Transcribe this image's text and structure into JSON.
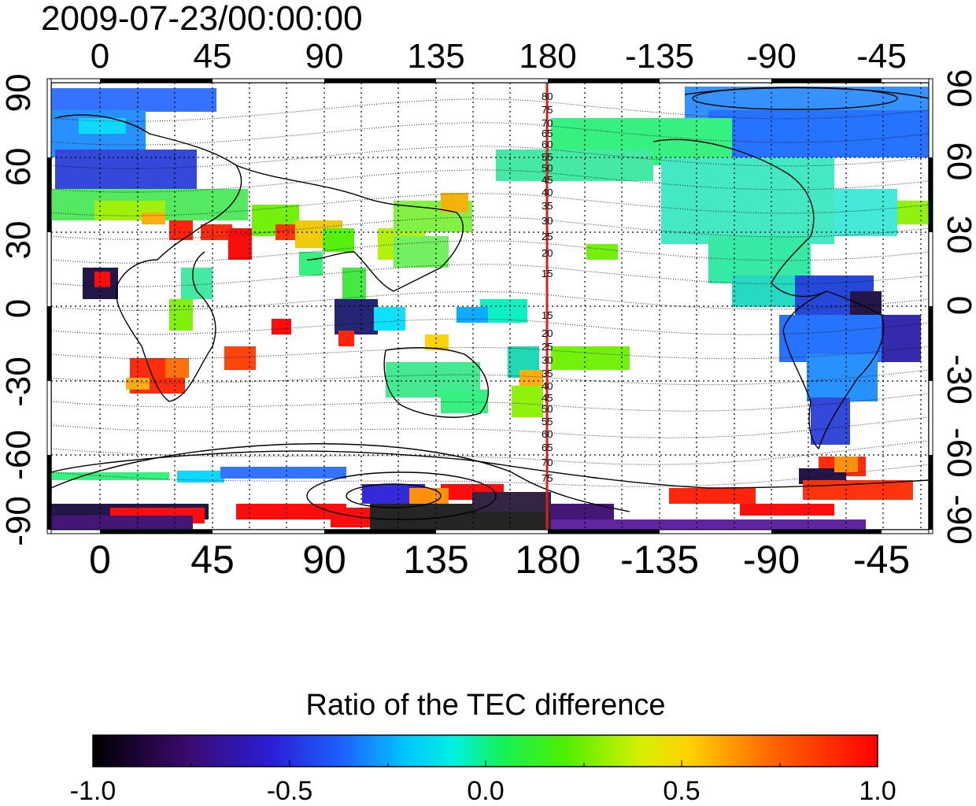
{
  "header": {
    "timestamp": "2009-07-23/00:00:00"
  },
  "map": {
    "top_lon_ticks": [
      "0",
      "45",
      "90",
      "135",
      "180",
      "-135",
      "-90",
      "-45"
    ],
    "bottom_lon_ticks": [
      "0",
      "45",
      "90",
      "135",
      "180",
      "-135",
      "-90",
      "-45"
    ],
    "left_lat_ticks": [
      "90",
      "60",
      "30",
      "0",
      "-30",
      "-60",
      "-90"
    ],
    "right_lat_ticks": [
      "90",
      "60",
      "30",
      "0",
      "-30",
      "-60",
      "-90"
    ],
    "meridian_labels_north": [
      "80",
      "75",
      "70",
      "65",
      "60",
      "55",
      "50",
      "45",
      "40",
      "35",
      "30",
      "25",
      "20",
      "15"
    ],
    "meridian_labels_south": [
      "15",
      "20",
      "25",
      "30",
      "35",
      "40",
      "45",
      "50",
      "55",
      "60",
      "65",
      "70",
      "75"
    ],
    "highlight_meridian_color": "#d62020",
    "coastline_color": "#000000"
  },
  "colorbar": {
    "title": "Ratio of the TEC difference",
    "tick_labels": [
      "-1.0",
      "-0.5",
      "0.0",
      "0.5",
      "1.0"
    ],
    "colormap": [
      "#000000",
      "#3a0a6e",
      "#2a1fd8",
      "#1b64ff",
      "#00e6ff",
      "#13f25a",
      "#2cf000",
      "#9df000",
      "#f0f000",
      "#ffab00",
      "#ff4a00",
      "#ff0000"
    ]
  }
}
